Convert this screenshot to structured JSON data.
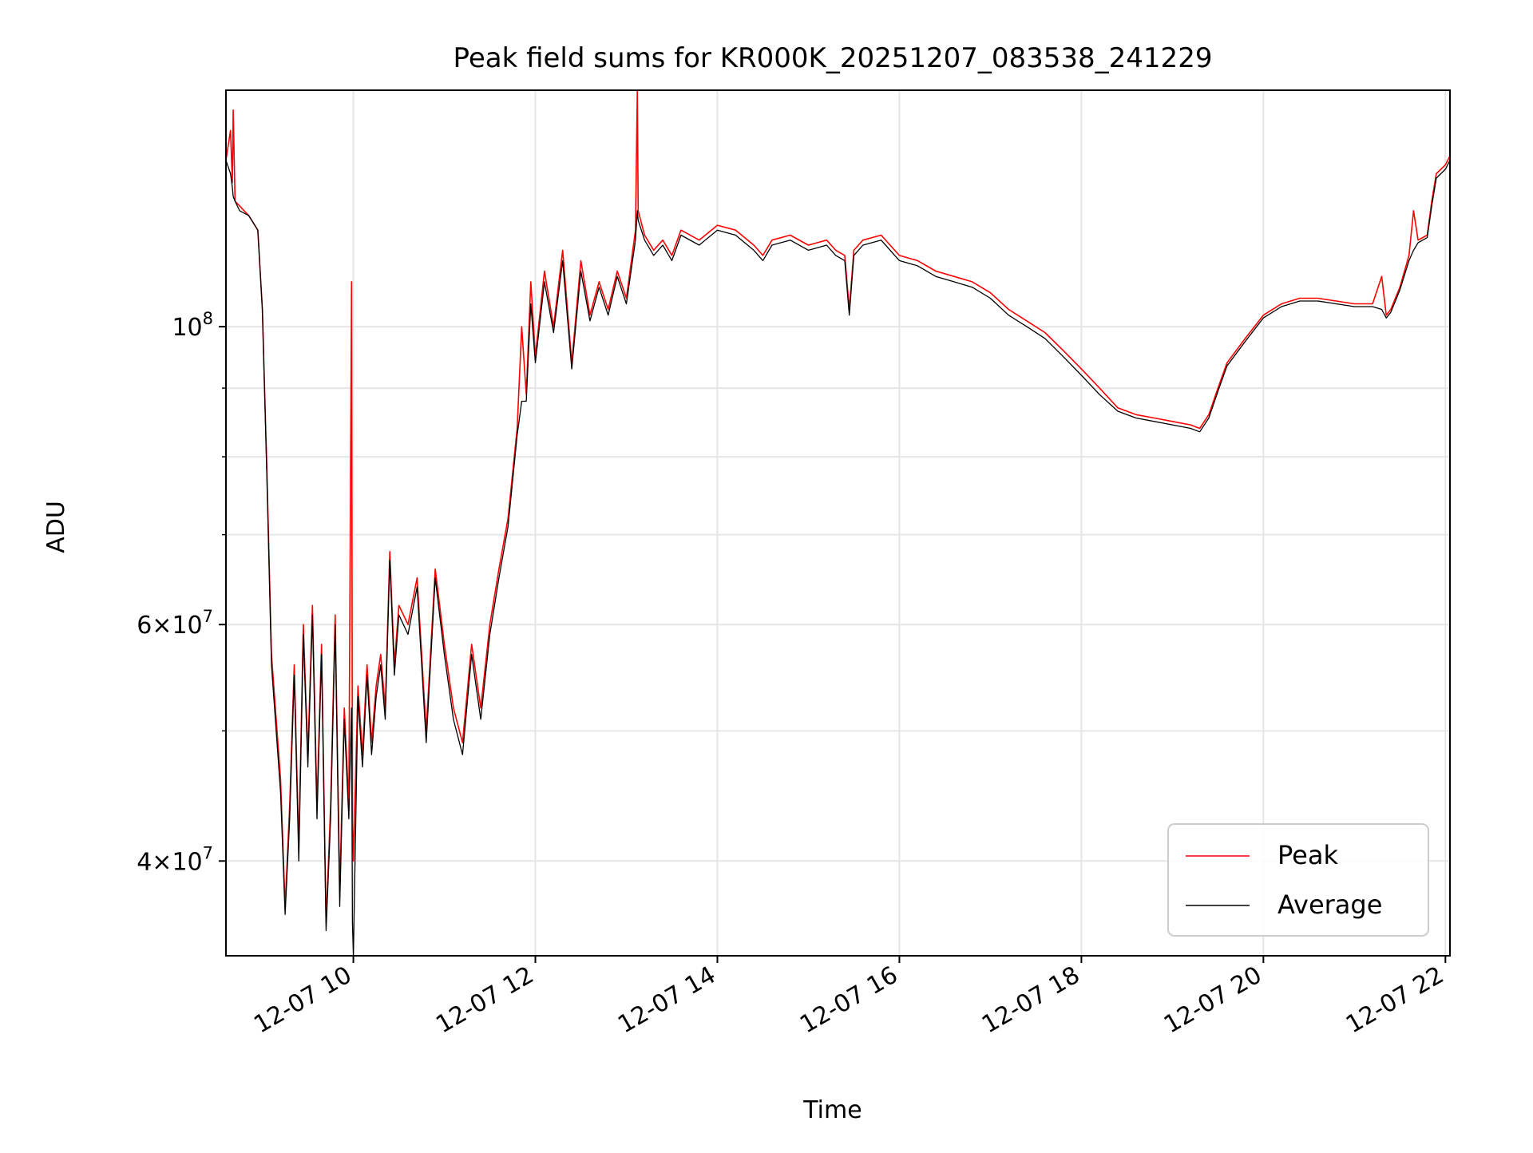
{
  "chart_data": {
    "type": "line",
    "title": "Peak field sums for KR000K_20251207_083538_241229",
    "xlabel": "Time",
    "ylabel": "ADU",
    "x_unit": "hours",
    "xlim": [
      8.6,
      22.05
    ],
    "ylim": [
      34000000,
      150000000
    ],
    "yscale": "log",
    "grid": true,
    "legend_position": "lower-right",
    "x_ticks": [
      {
        "value": 10,
        "label": "12-07 10"
      },
      {
        "value": 12,
        "label": "12-07 12"
      },
      {
        "value": 14,
        "label": "12-07 14"
      },
      {
        "value": 16,
        "label": "12-07 16"
      },
      {
        "value": 18,
        "label": "12-07 18"
      },
      {
        "value": 20,
        "label": "12-07 20"
      },
      {
        "value": 22,
        "label": "12-07 22"
      }
    ],
    "y_ticks": [
      {
        "value": 40000000,
        "mant": "4",
        "exp": "7"
      },
      {
        "value": 60000000,
        "mant": "6",
        "exp": "7"
      },
      {
        "value": 100000000,
        "mant": "",
        "exp": "8"
      }
    ],
    "y_minor_ticks": [
      50000000,
      70000000,
      80000000,
      90000000
    ],
    "series": [
      {
        "name": "Peak",
        "color": "#ff0000",
        "x": [
          8.6,
          8.65,
          8.67,
          8.68,
          8.7,
          8.75,
          8.85,
          8.95,
          9.0,
          9.05,
          9.1,
          9.2,
          9.25,
          9.3,
          9.35,
          9.4,
          9.45,
          9.5,
          9.55,
          9.6,
          9.65,
          9.7,
          9.75,
          9.8,
          9.85,
          9.9,
          9.95,
          9.98,
          9.99,
          10.0,
          10.05,
          10.1,
          10.15,
          10.2,
          10.25,
          10.3,
          10.35,
          10.4,
          10.45,
          10.5,
          10.6,
          10.7,
          10.8,
          10.9,
          11.0,
          11.1,
          11.2,
          11.3,
          11.4,
          11.5,
          11.6,
          11.7,
          11.8,
          11.85,
          11.9,
          11.95,
          12.0,
          12.1,
          12.2,
          12.3,
          12.4,
          12.5,
          12.6,
          12.7,
          12.8,
          12.9,
          13.0,
          13.1,
          13.12,
          13.13,
          13.2,
          13.3,
          13.4,
          13.5,
          13.6,
          13.8,
          14.0,
          14.2,
          14.4,
          14.5,
          14.6,
          14.8,
          15.0,
          15.2,
          15.3,
          15.4,
          15.45,
          15.5,
          15.6,
          15.8,
          16.0,
          16.2,
          16.4,
          16.6,
          16.8,
          17.0,
          17.2,
          17.4,
          17.6,
          17.8,
          18.0,
          18.2,
          18.4,
          18.6,
          18.8,
          19.0,
          19.2,
          19.3,
          19.4,
          19.5,
          19.6,
          19.8,
          20.0,
          20.2,
          20.4,
          20.6,
          20.8,
          21.0,
          21.2,
          21.3,
          21.35,
          21.4,
          21.5,
          21.6,
          21.65,
          21.7,
          21.8,
          21.85,
          21.9,
          22.0,
          22.05
        ],
        "y": [
          133000000,
          140000000,
          128000000,
          145000000,
          124000000,
          123000000,
          121000000,
          118000000,
          103000000,
          78000000,
          57000000,
          46000000,
          37000000,
          44000000,
          56000000,
          41000000,
          60000000,
          48000000,
          62000000,
          44000000,
          58000000,
          36000000,
          44000000,
          61000000,
          38000000,
          52000000,
          44000000,
          108000000,
          43000000,
          40000000,
          54000000,
          48000000,
          56000000,
          49000000,
          54000000,
          57000000,
          52000000,
          68000000,
          56000000,
          62000000,
          60000000,
          65000000,
          50000000,
          66000000,
          58000000,
          52000000,
          49000000,
          58000000,
          52000000,
          60000000,
          66000000,
          72000000,
          84000000,
          100000000,
          89000000,
          108000000,
          95000000,
          110000000,
          100000000,
          114000000,
          94000000,
          112000000,
          102000000,
          108000000,
          103000000,
          110000000,
          105000000,
          118000000,
          150000000,
          122000000,
          117000000,
          114000000,
          116000000,
          113000000,
          118000000,
          116000000,
          119000000,
          118000000,
          115000000,
          113000000,
          116000000,
          117000000,
          115000000,
          116000000,
          114000000,
          113000000,
          103000000,
          114000000,
          116000000,
          117000000,
          113000000,
          112000000,
          110000000,
          109000000,
          108000000,
          106000000,
          103000000,
          101000000,
          99000000,
          96000000,
          93000000,
          90000000,
          87000000,
          86000000,
          85500000,
          85000000,
          84500000,
          84000000,
          86000000,
          90000000,
          94000000,
          98000000,
          102000000,
          104000000,
          105000000,
          105000000,
          104500000,
          104000000,
          104000000,
          109000000,
          102000000,
          103000000,
          107000000,
          113000000,
          122000000,
          116000000,
          117000000,
          124000000,
          130000000,
          132000000,
          134000000
        ]
      },
      {
        "name": "Average",
        "color": "#000000",
        "x": [
          8.6,
          8.65,
          8.67,
          8.68,
          8.7,
          8.75,
          8.85,
          8.95,
          9.0,
          9.05,
          9.1,
          9.2,
          9.25,
          9.3,
          9.35,
          9.4,
          9.45,
          9.5,
          9.55,
          9.6,
          9.65,
          9.7,
          9.75,
          9.8,
          9.85,
          9.9,
          9.95,
          9.98,
          9.99,
          10.0,
          10.05,
          10.1,
          10.15,
          10.2,
          10.25,
          10.3,
          10.35,
          10.4,
          10.45,
          10.5,
          10.6,
          10.7,
          10.8,
          10.9,
          11.0,
          11.1,
          11.2,
          11.3,
          11.4,
          11.5,
          11.6,
          11.7,
          11.8,
          11.85,
          11.9,
          11.95,
          12.0,
          12.1,
          12.2,
          12.3,
          12.4,
          12.5,
          12.6,
          12.7,
          12.8,
          12.9,
          13.0,
          13.1,
          13.12,
          13.13,
          13.2,
          13.3,
          13.4,
          13.5,
          13.6,
          13.8,
          14.0,
          14.2,
          14.4,
          14.5,
          14.6,
          14.8,
          15.0,
          15.2,
          15.3,
          15.4,
          15.45,
          15.5,
          15.6,
          15.8,
          16.0,
          16.2,
          16.4,
          16.6,
          16.8,
          17.0,
          17.2,
          17.4,
          17.6,
          17.8,
          18.0,
          18.2,
          18.4,
          18.6,
          18.8,
          19.0,
          19.2,
          19.3,
          19.4,
          19.5,
          19.6,
          19.8,
          20.0,
          20.2,
          20.4,
          20.6,
          20.8,
          21.0,
          21.2,
          21.3,
          21.35,
          21.4,
          21.5,
          21.6,
          21.65,
          21.7,
          21.8,
          21.85,
          21.9,
          22.0,
          22.05
        ],
        "y": [
          133000000,
          130000000,
          127000000,
          125000000,
          124000000,
          122000000,
          121000000,
          118000000,
          103000000,
          77000000,
          56000000,
          45000000,
          36500000,
          43000000,
          55000000,
          40000000,
          59000000,
          47000000,
          61000000,
          43000000,
          57000000,
          35500000,
          43000000,
          60000000,
          37000000,
          51000000,
          43000000,
          52000000,
          36000000,
          34000000,
          53000000,
          47000000,
          55000000,
          48000000,
          53000000,
          56000000,
          51000000,
          67000000,
          55000000,
          61000000,
          59000000,
          64000000,
          49000000,
          65000000,
          57000000,
          51000000,
          48000000,
          57000000,
          51000000,
          59000000,
          65000000,
          71000000,
          83000000,
          88000000,
          88000000,
          104000000,
          94000000,
          108000000,
          99000000,
          112000000,
          93000000,
          110000000,
          101000000,
          107000000,
          102000000,
          109000000,
          104000000,
          116000000,
          122000000,
          120000000,
          116000000,
          113000000,
          115000000,
          112000000,
          117000000,
          115000000,
          118000000,
          117000000,
          114000000,
          112000000,
          115000000,
          116000000,
          114000000,
          115000000,
          113000000,
          112000000,
          102000000,
          113000000,
          115000000,
          116000000,
          112000000,
          111000000,
          109000000,
          108000000,
          107000000,
          105000000,
          102000000,
          100000000,
          98000000,
          95000000,
          92000000,
          89000000,
          86500000,
          85500000,
          85000000,
          84500000,
          84000000,
          83500000,
          85500000,
          89500000,
          93500000,
          97500000,
          101500000,
          103500000,
          104500000,
          104500000,
          104000000,
          103500000,
          103500000,
          103000000,
          101500000,
          102500000,
          106500000,
          112000000,
          114000000,
          115500000,
          116500000,
          123000000,
          129000000,
          131000000,
          133000000
        ]
      }
    ]
  }
}
